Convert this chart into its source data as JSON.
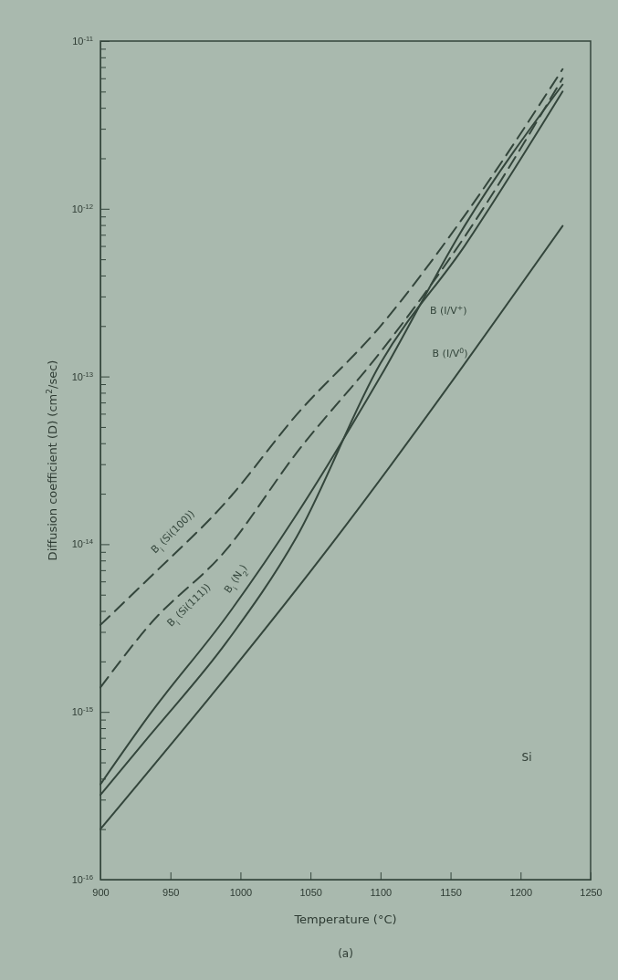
{
  "chart_data": {
    "type": "line",
    "xlabel": "Temperature (°C)",
    "ylabel": "Diffusion coefficient (D) (cm$^{2}$/sec)",
    "log": true,
    "grid": false,
    "legend": false,
    "marker": "none",
    "xlim": [
      900,
      1250
    ],
    "xticks": [
      900,
      950,
      1000,
      1050,
      1100,
      1150,
      1200,
      1250
    ],
    "ylim": [
      1e-16,
      1e-11
    ],
    "yticks": [
      {
        "value": 1e-16,
        "label": "10$^{-16}$"
      },
      {
        "value": 2e-16,
        "label": null
      },
      {
        "value": 3e-16,
        "label": null
      },
      {
        "value": 4e-16,
        "label": null
      },
      {
        "value": 5e-16,
        "label": null
      },
      {
        "value": 6e-16,
        "label": null
      },
      {
        "value": 7e-16,
        "label": null
      },
      {
        "value": 8e-16,
        "label": null
      },
      {
        "value": 9e-16,
        "label": null
      },
      {
        "value": 1e-15,
        "label": "10$^{-15}$"
      },
      {
        "value": 2e-15,
        "label": null
      },
      {
        "value": 3e-15,
        "label": null
      },
      {
        "value": 4e-15,
        "label": null
      },
      {
        "value": 5e-15,
        "label": null
      },
      {
        "value": 6e-15,
        "label": null
      },
      {
        "value": 7e-15,
        "label": null
      },
      {
        "value": 8e-15,
        "label": null
      },
      {
        "value": 9e-15,
        "label": null
      },
      {
        "value": 1e-14,
        "label": "10$^{-14}$"
      },
      {
        "value": 2e-14,
        "label": null
      },
      {
        "value": 3e-14,
        "label": null
      },
      {
        "value": 4e-14,
        "label": null
      },
      {
        "value": 5e-14,
        "label": null
      },
      {
        "value": 6e-14,
        "label": null
      },
      {
        "value": 7e-14,
        "label": null
      },
      {
        "value": 8e-14,
        "label": null
      },
      {
        "value": 9e-14,
        "label": null
      },
      {
        "value": 1e-13,
        "label": "10$^{-13}$"
      },
      {
        "value": 2e-13,
        "label": null
      },
      {
        "value": 3e-13,
        "label": null
      },
      {
        "value": 4e-13,
        "label": null
      },
      {
        "value": 5e-13,
        "label": null
      },
      {
        "value": 6e-13,
        "label": null
      },
      {
        "value": 7e-13,
        "label": null
      },
      {
        "value": 8e-13,
        "label": null
      },
      {
        "value": 9e-13,
        "label": null
      },
      {
        "value": 1e-12,
        "label": "10$^{-12}$"
      },
      {
        "value": 2e-12,
        "label": null
      },
      {
        "value": 3e-12,
        "label": null
      },
      {
        "value": 4e-12,
        "label": null
      },
      {
        "value": 5e-12,
        "label": null
      },
      {
        "value": 6e-12,
        "label": null
      },
      {
        "value": 7e-12,
        "label": null
      },
      {
        "value": 8e-12,
        "label": null
      },
      {
        "value": 9e-12,
        "label": null
      },
      {
        "value": 1e-11,
        "label": "10$^{-11}$"
      }
    ],
    "x": [
      900,
      935,
      990,
      1040,
      1100,
      1160,
      1230
    ],
    "series": [
      {
        "name": "B$_{i}$ (Si(100))",
        "color": "#34463c",
        "line_style": "dashed",
        "values": [
          3.3e-15,
          6.3e-15,
          1.8e-14,
          5.9e-14,
          2e-13,
          9.1e-13,
          6.8e-12
        ]
      },
      {
        "name": "B$_{i}$ (Si(111))",
        "color": "#34463c",
        "line_style": "dashed",
        "values": [
          1.4e-15,
          3.3e-15,
          9.3e-15,
          3.5e-14,
          1.4e-13,
          6.8e-13,
          6e-12
        ]
      },
      {
        "name": "B$_{i}$ (N$_{2}$)",
        "color": "#34463c",
        "line_style": "solid",
        "values": [
          3.7e-16,
          9.6e-16,
          3.7e-15,
          1.5e-14,
          1e-13,
          7.9e-13,
          5.5e-12
        ]
      },
      {
        "name": "B (I/V$^{+}$)",
        "color": "#34463c",
        "line_style": "solid",
        "values": [
          3.2e-16,
          7.2e-16,
          2.6e-15,
          1.1e-14,
          1.2e-13,
          6e-13,
          5e-12
        ]
      },
      {
        "name": "B (I/V$^{0}$)",
        "color": "#34463c",
        "line_style": "solid",
        "x": [
          900,
          1065,
          1230
        ],
        "values": [
          2e-16,
          1e-14,
          7.9e-13
        ]
      }
    ],
    "annotations": [
      "Si",
      "(a)"
    ]
  }
}
